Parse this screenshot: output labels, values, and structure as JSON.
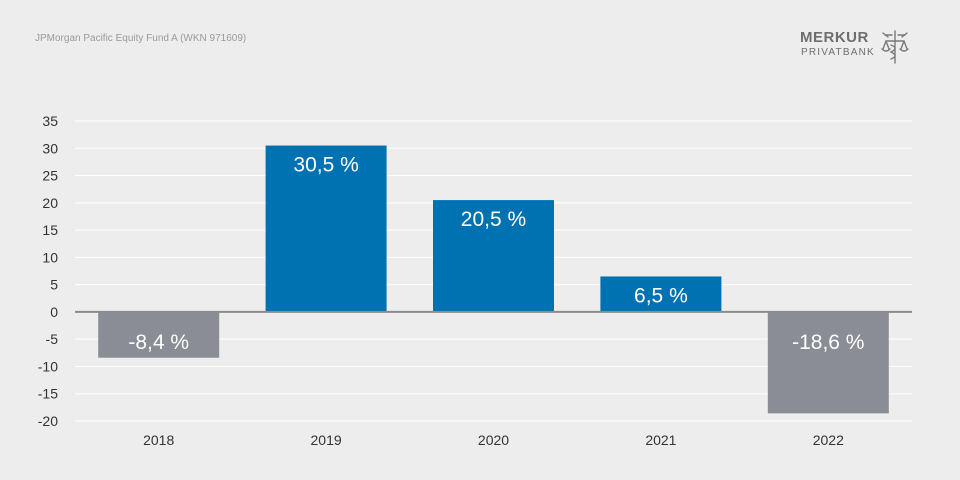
{
  "header": {
    "subtitle": "JPMorgan Pacific Equity Fund A (WKN 971609)"
  },
  "logo": {
    "name": "MERKUR",
    "sub": "PRIVATBANK",
    "icon": "caduceus-scales-icon"
  },
  "colors": {
    "positive": "#0072b1",
    "negative": "#8a8c96",
    "grid": "#ffffff",
    "zero_line": "#8c8c8c",
    "text": "#333333",
    "background": "#ededed"
  },
  "chart_data": {
    "type": "bar",
    "categories": [
      "2018",
      "2019",
      "2020",
      "2021",
      "2022"
    ],
    "values": [
      -8.4,
      30.5,
      20.5,
      6.5,
      -18.6
    ],
    "data_labels": [
      "-8,4 %",
      "30,5 %",
      "20,5 %",
      "6,5 %",
      "-18,6 %"
    ],
    "y_ticks": [
      "35",
      "30",
      "25",
      "20",
      "15",
      "10",
      "5",
      "0",
      "-5",
      "-10",
      "-15",
      "-20"
    ],
    "ylim": [
      -20,
      35
    ],
    "grid": true,
    "legend": "none"
  }
}
